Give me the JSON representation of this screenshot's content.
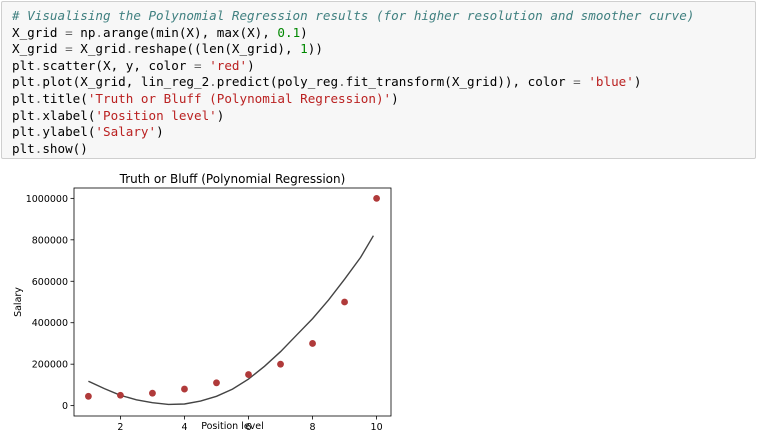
{
  "code_cell": {
    "lines": [
      [
        {
          "t": "comment",
          "v": "# Visualising the Polynomial Regression results (for higher resolution and smoother curve)"
        }
      ],
      [
        {
          "t": "name",
          "v": "X_grid "
        },
        {
          "t": "op",
          "v": "="
        },
        {
          "t": "name",
          "v": " np"
        },
        {
          "t": "op",
          "v": "."
        },
        {
          "t": "name",
          "v": "arange(min(X), max(X), "
        },
        {
          "t": "num",
          "v": "0.1"
        },
        {
          "t": "name",
          "v": ")"
        }
      ],
      [
        {
          "t": "name",
          "v": "X_grid "
        },
        {
          "t": "op",
          "v": "="
        },
        {
          "t": "name",
          "v": " X_grid"
        },
        {
          "t": "op",
          "v": "."
        },
        {
          "t": "name",
          "v": "reshape((len(X_grid), "
        },
        {
          "t": "num",
          "v": "1"
        },
        {
          "t": "name",
          "v": "))"
        }
      ],
      [
        {
          "t": "name",
          "v": "plt"
        },
        {
          "t": "op",
          "v": "."
        },
        {
          "t": "name",
          "v": "scatter(X, y, color "
        },
        {
          "t": "op",
          "v": "="
        },
        {
          "t": "name",
          "v": " "
        },
        {
          "t": "str",
          "v": "'red'"
        },
        {
          "t": "name",
          "v": ")"
        }
      ],
      [
        {
          "t": "name",
          "v": "plt"
        },
        {
          "t": "op",
          "v": "."
        },
        {
          "t": "name",
          "v": "plot(X_grid, lin_reg_2"
        },
        {
          "t": "op",
          "v": "."
        },
        {
          "t": "name",
          "v": "predict(poly_reg"
        },
        {
          "t": "op",
          "v": "."
        },
        {
          "t": "name",
          "v": "fit_transform(X_grid)), color "
        },
        {
          "t": "op",
          "v": "="
        },
        {
          "t": "name",
          "v": " "
        },
        {
          "t": "str",
          "v": "'blue'"
        },
        {
          "t": "name",
          "v": ")"
        }
      ],
      [
        {
          "t": "name",
          "v": "plt"
        },
        {
          "t": "op",
          "v": "."
        },
        {
          "t": "name",
          "v": "title("
        },
        {
          "t": "str",
          "v": "'Truth or Bluff (Polynomial Regression)'"
        },
        {
          "t": "name",
          "v": ")"
        }
      ],
      [
        {
          "t": "name",
          "v": "plt"
        },
        {
          "t": "op",
          "v": "."
        },
        {
          "t": "name",
          "v": "xlabel("
        },
        {
          "t": "str",
          "v": "'Position level'"
        },
        {
          "t": "name",
          "v": ")"
        }
      ],
      [
        {
          "t": "name",
          "v": "plt"
        },
        {
          "t": "op",
          "v": "."
        },
        {
          "t": "name",
          "v": "ylabel("
        },
        {
          "t": "str",
          "v": "'Salary'"
        },
        {
          "t": "name",
          "v": ")"
        }
      ],
      [
        {
          "t": "name",
          "v": "plt"
        },
        {
          "t": "op",
          "v": "."
        },
        {
          "t": "name",
          "v": "show()"
        }
      ]
    ]
  },
  "chart_data": {
    "type": "scatter",
    "title": "Truth or Bluff (Polynomial Regression)",
    "xlabel": "Position level",
    "ylabel": "Salary",
    "xlim": [
      0.55,
      10.45
    ],
    "ylim": [
      -50000,
      1050000
    ],
    "x_ticks": [
      2,
      4,
      6,
      8,
      10
    ],
    "y_ticks": [
      0,
      200000,
      400000,
      600000,
      800000,
      1000000
    ],
    "grid": false,
    "colors": {
      "scatter": "#b03a3a",
      "line": "#444444"
    },
    "series": [
      {
        "type": "scatter",
        "x": [
          1,
          2,
          3,
          4,
          5,
          6,
          7,
          8,
          9,
          10
        ],
        "y": [
          45000,
          50000,
          60000,
          80000,
          110000,
          150000,
          200000,
          300000,
          500000,
          1000000
        ]
      },
      {
        "type": "line",
        "x": [
          1.0,
          1.5,
          2.0,
          2.5,
          3.0,
          3.5,
          4.0,
          4.5,
          5.0,
          5.5,
          6.0,
          6.5,
          7.0,
          7.5,
          8.0,
          8.5,
          9.0,
          9.5,
          9.9
        ],
        "y": [
          118000,
          82000,
          50000,
          28000,
          14000,
          6000,
          8000,
          22000,
          45000,
          80000,
          128000,
          190000,
          260000,
          340000,
          420000,
          510000,
          610000,
          715000,
          820000
        ]
      }
    ]
  }
}
